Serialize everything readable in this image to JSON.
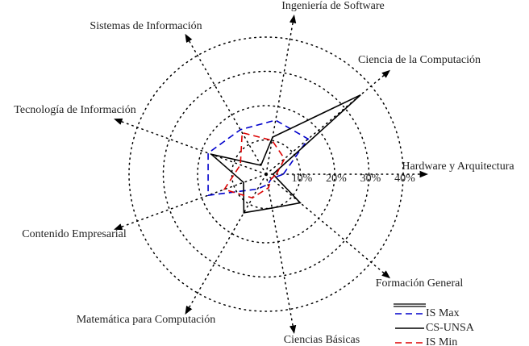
{
  "chart_data": {
    "type": "radar",
    "categories": [
      "Hardware y Arquitectura",
      "Ciencia de la Computación",
      "Ingeniería de Software",
      "Sistemas de Información",
      "Tecnología de Información",
      "Contenido Empresarial",
      "Matemática para Computación",
      "Ciencias Básicas",
      "Formación General"
    ],
    "rlim": [
      0,
      40
    ],
    "rticks": [
      {
        "value": 10,
        "label": "10%"
      },
      {
        "value": 20,
        "label": "20%"
      },
      {
        "value": 30,
        "label": "30%"
      },
      {
        "value": 40,
        "label": "40%"
      }
    ],
    "series": [
      {
        "name": "IS Max",
        "color": "#0000cc",
        "dash": "8 5",
        "values": [
          5,
          16,
          16,
          15,
          18,
          18,
          5,
          3,
          2
        ]
      },
      {
        "name": "CS-UNSA",
        "color": "#000000",
        "dash": "none",
        "values": [
          2,
          36,
          11,
          3,
          17,
          7,
          13,
          10,
          13
        ]
      },
      {
        "name": "IS Min",
        "color": "#dd0000",
        "dash": "8 5",
        "values": [
          3,
          7,
          10,
          14,
          8,
          13,
          8,
          4,
          2
        ]
      }
    ]
  }
}
